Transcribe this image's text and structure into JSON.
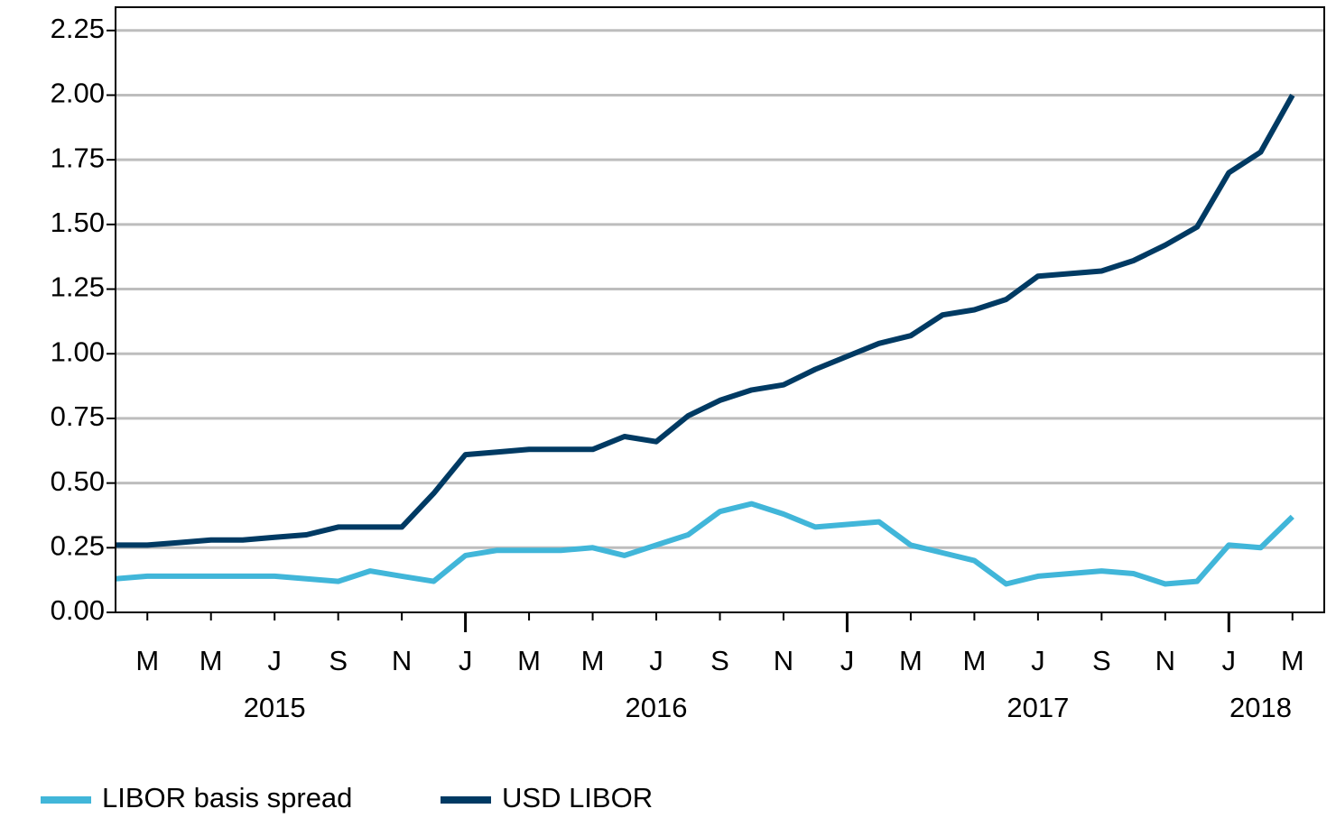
{
  "chart_data": {
    "type": "line",
    "x": [
      "2015-02",
      "2015-03",
      "2015-04",
      "2015-05",
      "2015-06",
      "2015-07",
      "2015-08",
      "2015-09",
      "2015-10",
      "2015-11",
      "2015-12",
      "2016-01",
      "2016-02",
      "2016-03",
      "2016-04",
      "2016-05",
      "2016-06",
      "2016-07",
      "2016-08",
      "2016-09",
      "2016-10",
      "2016-11",
      "2016-12",
      "2017-01",
      "2017-02",
      "2017-03",
      "2017-04",
      "2017-05",
      "2017-06",
      "2017-07",
      "2017-08",
      "2017-09",
      "2017-10",
      "2017-11",
      "2017-12",
      "2018-01",
      "2018-02",
      "2018-03"
    ],
    "series": [
      {
        "name": "LIBOR basis spread",
        "color": "#41b6d9",
        "values": [
          0.13,
          0.14,
          0.14,
          0.14,
          0.14,
          0.14,
          0.13,
          0.12,
          0.16,
          0.14,
          0.12,
          0.22,
          0.24,
          0.24,
          0.24,
          0.25,
          0.22,
          0.26,
          0.3,
          0.39,
          0.42,
          0.38,
          0.33,
          0.34,
          0.35,
          0.26,
          0.23,
          0.2,
          0.11,
          0.14,
          0.15,
          0.16,
          0.15,
          0.11,
          0.12,
          0.26,
          0.25,
          0.37
        ]
      },
      {
        "name": "USD LIBOR",
        "color": "#003a63",
        "values": [
          0.26,
          0.26,
          0.27,
          0.28,
          0.28,
          0.29,
          0.3,
          0.33,
          0.33,
          0.33,
          0.46,
          0.61,
          0.62,
          0.63,
          0.63,
          0.63,
          0.68,
          0.66,
          0.76,
          0.82,
          0.86,
          0.88,
          0.94,
          0.99,
          1.04,
          1.07,
          1.15,
          1.17,
          1.21,
          1.3,
          1.31,
          1.32,
          1.36,
          1.42,
          1.49,
          1.7,
          1.78,
          2.0
        ]
      }
    ],
    "xlim": [
      "2015-02",
      "2018-04"
    ],
    "xticks": [
      {
        "value": "2015-03",
        "label": "M"
      },
      {
        "value": "2015-05",
        "label": "M"
      },
      {
        "value": "2015-07",
        "label": "J"
      },
      {
        "value": "2015-09",
        "label": "S"
      },
      {
        "value": "2015-11",
        "label": "N"
      },
      {
        "value": "2016-01",
        "label": "J"
      },
      {
        "value": "2016-03",
        "label": "M"
      },
      {
        "value": "2016-05",
        "label": "M"
      },
      {
        "value": "2016-07",
        "label": "J"
      },
      {
        "value": "2016-09",
        "label": "S"
      },
      {
        "value": "2016-11",
        "label": "N"
      },
      {
        "value": "2017-01",
        "label": "J"
      },
      {
        "value": "2017-03",
        "label": "M"
      },
      {
        "value": "2017-05",
        "label": "M"
      },
      {
        "value": "2017-07",
        "label": "J"
      },
      {
        "value": "2017-09",
        "label": "S"
      },
      {
        "value": "2017-11",
        "label": "N"
      },
      {
        "value": "2018-01",
        "label": "J"
      },
      {
        "value": "2018-03",
        "label": "M"
      }
    ],
    "year_labels": [
      {
        "value": "2015-07",
        "label": "2015"
      },
      {
        "value": "2016-07",
        "label": "2016"
      },
      {
        "value": "2017-07",
        "label": "2017"
      },
      {
        "value": "2018-02",
        "label": "2018"
      }
    ],
    "ylim": [
      0,
      2.34
    ],
    "yticks": [
      {
        "value": 0,
        "label": "0.00"
      },
      {
        "value": 0.25,
        "label": "0.25"
      },
      {
        "value": 0.5,
        "label": "0.50"
      },
      {
        "value": 0.75,
        "label": "0.75"
      },
      {
        "value": 1,
        "label": "1.00"
      },
      {
        "value": 1.25,
        "label": "1.25"
      },
      {
        "value": 1.5,
        "label": "1.50"
      },
      {
        "value": 1.75,
        "label": "1.75"
      },
      {
        "value": 2,
        "label": "2.00"
      },
      {
        "value": 2.25,
        "label": "2.25"
      }
    ],
    "grid": true,
    "legend": "bottom"
  }
}
